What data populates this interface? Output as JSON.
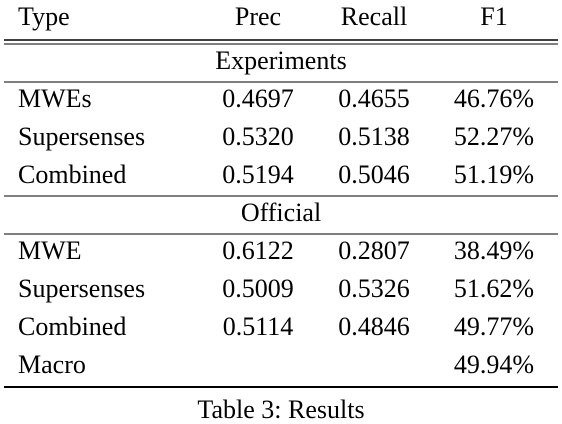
{
  "table": {
    "header": [
      "Type",
      "Prec",
      "Recall",
      "F1"
    ],
    "sections": [
      {
        "title": "Experiments",
        "rows": [
          [
            "MWEs",
            "0.4697",
            "0.4655",
            "46.76%"
          ],
          [
            "Supersenses",
            "0.5320",
            "0.5138",
            "52.27%"
          ],
          [
            "Combined",
            "0.5194",
            "0.5046",
            "51.19%"
          ]
        ]
      },
      {
        "title": "Official",
        "rows": [
          [
            "MWE",
            "0.6122",
            "0.2807",
            "38.49%"
          ],
          [
            "Supersenses",
            "0.5009",
            "0.5326",
            "51.62%"
          ],
          [
            "Combined",
            "0.5114",
            "0.4846",
            "49.77%"
          ],
          [
            "Macro",
            null,
            null,
            "49.94%"
          ]
        ]
      }
    ]
  },
  "caption": "Table 3: Results"
}
